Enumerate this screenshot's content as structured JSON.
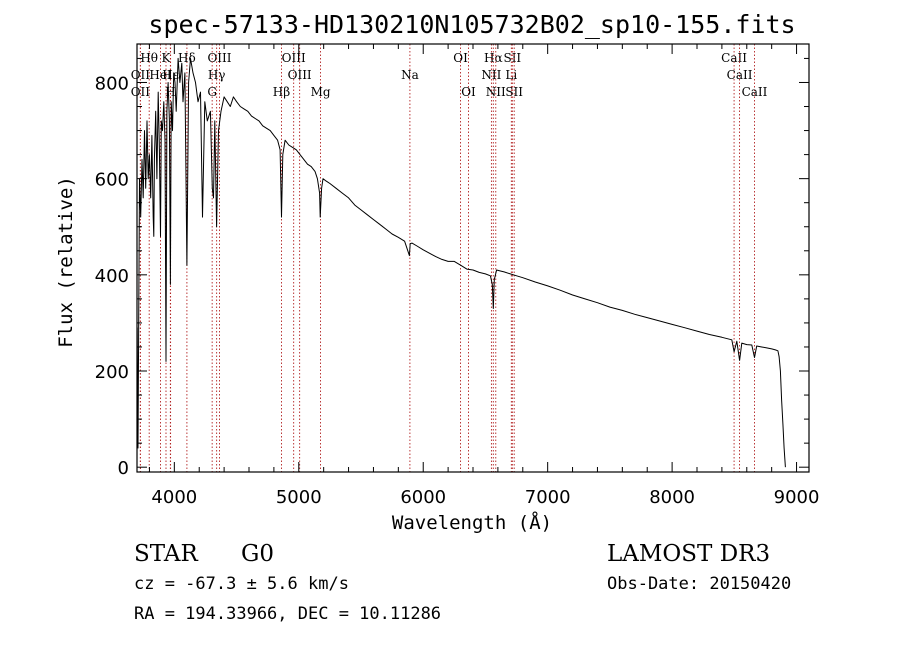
{
  "chart_data": {
    "type": "line",
    "title": "spec-57133-HD130210N105732B02_sp10-155.fits",
    "xlabel": "Wavelength (Å)",
    "ylabel": "Flux (relative)",
    "xlim": [
      3700,
      9100
    ],
    "ylim": [
      -10,
      880
    ],
    "xticks": [
      4000,
      5000,
      6000,
      7000,
      8000,
      9000
    ],
    "yticks": [
      0,
      200,
      400,
      600,
      800
    ],
    "series": [
      {
        "name": "flux",
        "x": [
          3700,
          3702,
          3708,
          3720,
          3730,
          3740,
          3750,
          3760,
          3770,
          3780,
          3790,
          3800,
          3810,
          3820,
          3830,
          3835,
          3840,
          3850,
          3860,
          3870,
          3880,
          3889,
          3895,
          3905,
          3915,
          3925,
          3933,
          3940,
          3950,
          3960,
          3968,
          3975,
          3985,
          3995,
          4005,
          4015,
          4030,
          4045,
          4060,
          4070,
          4085,
          4101,
          4115,
          4130,
          4150,
          4170,
          4190,
          4210,
          4226,
          4245,
          4265,
          4290,
          4305,
          4315,
          4325,
          4340,
          4355,
          4375,
          4400,
          4425,
          4450,
          4475,
          4500,
          4530,
          4560,
          4590,
          4620,
          4650,
          4680,
          4710,
          4740,
          4770,
          4800,
          4830,
          4850,
          4861,
          4872,
          4890,
          4920,
          4950,
          4980,
          5010,
          5040,
          5070,
          5100,
          5130,
          5150,
          5167,
          5172,
          5183,
          5195,
          5220,
          5250,
          5300,
          5350,
          5400,
          5450,
          5500,
          5550,
          5600,
          5650,
          5700,
          5750,
          5800,
          5850,
          5889,
          5895,
          5910,
          5950,
          6000,
          6050,
          6100,
          6150,
          6200,
          6250,
          6300,
          6350,
          6400,
          6450,
          6500,
          6540,
          6555,
          6563,
          6571,
          6590,
          6620,
          6650,
          6700,
          6750,
          6800,
          6900,
          7000,
          7100,
          7200,
          7300,
          7400,
          7500,
          7600,
          7700,
          7800,
          7900,
          8000,
          8100,
          8200,
          8300,
          8400,
          8480,
          8498,
          8520,
          8542,
          8560,
          8600,
          8640,
          8662,
          8680,
          8720,
          8760,
          8800,
          8830,
          8850,
          8860,
          8870,
          8880,
          8890,
          8900,
          8910
        ],
        "y": [
          0,
          290,
          40,
          600,
          520,
          640,
          560,
          700,
          580,
          720,
          600,
          650,
          560,
          690,
          520,
          480,
          640,
          740,
          600,
          780,
          660,
          480,
          720,
          700,
          760,
          680,
          220,
          740,
          800,
          720,
          380,
          760,
          700,
          820,
          800,
          740,
          850,
          800,
          840,
          760,
          820,
          420,
          800,
          850,
          820,
          800,
          760,
          780,
          520,
          760,
          720,
          740,
          580,
          560,
          720,
          500,
          700,
          740,
          770,
          760,
          750,
          770,
          760,
          750,
          745,
          740,
          730,
          725,
          720,
          710,
          705,
          700,
          690,
          680,
          660,
          520,
          650,
          680,
          670,
          665,
          660,
          650,
          640,
          630,
          625,
          615,
          600,
          570,
          520,
          580,
          600,
          595,
          590,
          580,
          570,
          560,
          545,
          535,
          525,
          515,
          505,
          495,
          485,
          478,
          470,
          440,
          465,
          466,
          460,
          452,
          445,
          438,
          432,
          428,
          428,
          420,
          412,
          410,
          405,
          402,
          398,
          380,
          330,
          390,
          410,
          408,
          406,
          402,
          398,
          394,
          385,
          377,
          368,
          358,
          350,
          342,
          333,
          326,
          318,
          311,
          304,
          297,
          290,
          283,
          276,
          270,
          265,
          240,
          262,
          222,
          258,
          255,
          254,
          228,
          252,
          250,
          248,
          246,
          244,
          242,
          230,
          200,
          140,
          90,
          40,
          0
        ]
      }
    ],
    "spectral_lines": [
      {
        "label": "Hθ",
        "wave": 3798,
        "row": 1
      },
      {
        "label": "OII",
        "wave": 3727,
        "row": 2
      },
      {
        "label": "OII",
        "wave": 3727,
        "row": 3
      },
      {
        "label": "HeI",
        "wave": 3889,
        "row": 2
      },
      {
        "label": "K",
        "wave": 3933,
        "row": 1
      },
      {
        "label": "H",
        "wave": 3968,
        "row": 3
      },
      {
        "label": "Hε",
        "wave": 3970,
        "row": 2
      },
      {
        "label": "Hδ",
        "wave": 4101,
        "row": 1
      },
      {
        "label": "OIII",
        "wave": 4363,
        "row": 1
      },
      {
        "label": "Hγ",
        "wave": 4340,
        "row": 2
      },
      {
        "label": "G",
        "wave": 4304,
        "row": 3
      },
      {
        "label": "OIII",
        "wave": 4959,
        "row": 1
      },
      {
        "label": "OIII",
        "wave": 5007,
        "row": 2
      },
      {
        "label": "Hβ",
        "wave": 4861,
        "row": 3
      },
      {
        "label": "Mg",
        "wave": 5175,
        "row": 3
      },
      {
        "label": "Na",
        "wave": 5893,
        "row": 2
      },
      {
        "label": "OI",
        "wave": 6300,
        "row": 1
      },
      {
        "label": "OI",
        "wave": 6364,
        "row": 3
      },
      {
        "label": "Hα",
        "wave": 6563,
        "row": 1
      },
      {
        "label": "NII",
        "wave": 6548,
        "row": 2
      },
      {
        "label": "NII",
        "wave": 6583,
        "row": 3
      },
      {
        "label": "SII",
        "wave": 6716,
        "row": 1
      },
      {
        "label": "Li",
        "wave": 6708,
        "row": 2
      },
      {
        "label": "SII",
        "wave": 6731,
        "row": 3
      },
      {
        "label": "CaII",
        "wave": 8498,
        "row": 1
      },
      {
        "label": "CaII",
        "wave": 8542,
        "row": 2
      },
      {
        "label": "CaII",
        "wave": 8662,
        "row": 3
      }
    ]
  },
  "info": {
    "object_type": "STAR",
    "subclass": "G0",
    "survey": "LAMOST DR3",
    "cz": "cz = -67.3 ± 5.6 km/s",
    "obs_date": "Obs-Date: 20150420",
    "coords": "RA = 194.33966, DEC =  10.11286"
  },
  "colors": {
    "line_marker": "#b22222",
    "spectrum": "#000000"
  }
}
